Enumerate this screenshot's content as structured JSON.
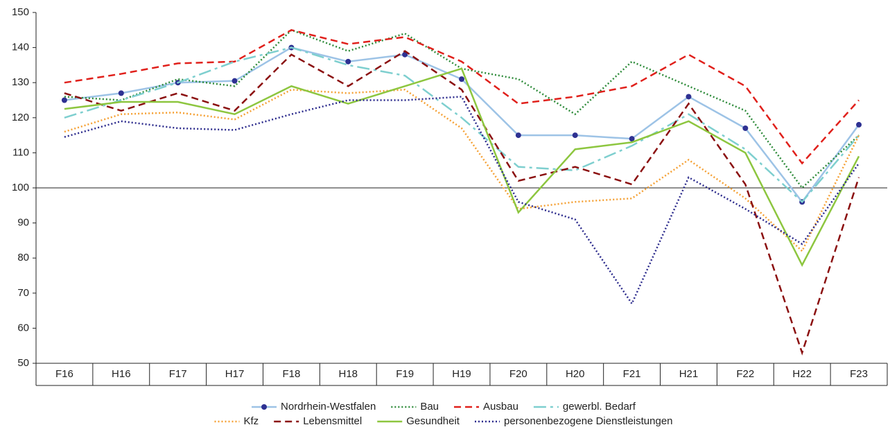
{
  "chart_data": {
    "type": "line",
    "categories": [
      "F16",
      "H16",
      "F17",
      "H17",
      "F18",
      "H18",
      "F19",
      "H19",
      "F20",
      "H20",
      "F21",
      "H21",
      "F22",
      "H22",
      "F23"
    ],
    "ylim": [
      50,
      150
    ],
    "yticks": [
      50,
      60,
      70,
      80,
      90,
      100,
      110,
      120,
      130,
      140,
      150
    ],
    "baseline": 100,
    "series": [
      {
        "name": "Nordrhein-Westfalen",
        "color": "#9dc3e6",
        "marker": "circle",
        "marker_color": "#2e3192",
        "dash": "solid",
        "values": [
          125,
          127,
          130,
          130.5,
          140,
          136,
          138,
          131,
          115,
          115,
          114,
          126,
          117,
          96,
          118
        ]
      },
      {
        "name": "Bau",
        "color": "#2e8b3a",
        "dash": "dotted",
        "values": [
          126,
          125,
          131,
          129,
          145,
          139,
          144,
          134,
          131,
          121,
          136,
          129,
          122,
          100,
          115
        ]
      },
      {
        "name": "Ausbau",
        "color": "#e0201b",
        "dash": "dashed",
        "values": [
          130,
          132.5,
          135.5,
          136,
          145,
          141,
          143,
          136,
          124,
          126,
          129,
          138,
          129,
          107,
          125
        ]
      },
      {
        "name": "gewerbl. Bedarf",
        "color": "#7ecfcf",
        "dash": "longdash",
        "values": [
          120,
          125,
          130,
          136,
          140,
          135,
          132,
          120,
          106,
          105,
          112,
          121,
          111,
          96,
          115
        ]
      },
      {
        "name": "Kfz",
        "color": "#f5a033",
        "dash": "dotted",
        "values": [
          116,
          121,
          121.5,
          119.5,
          128,
          127,
          128,
          117,
          94,
          96,
          97,
          108,
          97,
          82,
          115
        ]
      },
      {
        "name": "Lebensmittel",
        "color": "#8b1010",
        "dash": "dashed",
        "values": [
          127,
          122,
          127,
          122,
          138,
          129,
          139,
          128,
          102,
          106,
          101,
          124,
          101,
          53,
          103
        ]
      },
      {
        "name": "Gesundheit",
        "color": "#8dc63f",
        "dash": "solid",
        "values": [
          122.5,
          124.5,
          124.5,
          121,
          129,
          124,
          129,
          134,
          93,
          111,
          113,
          119,
          110,
          78,
          109
        ]
      },
      {
        "name": "personenbezogene Dienstleistungen",
        "color": "#2b2a8c",
        "dash": "dotted",
        "values": [
          114.5,
          119,
          117,
          116.5,
          121,
          125,
          125,
          126,
          96,
          91,
          67,
          103,
          94,
          84,
          107
        ]
      }
    ]
  }
}
